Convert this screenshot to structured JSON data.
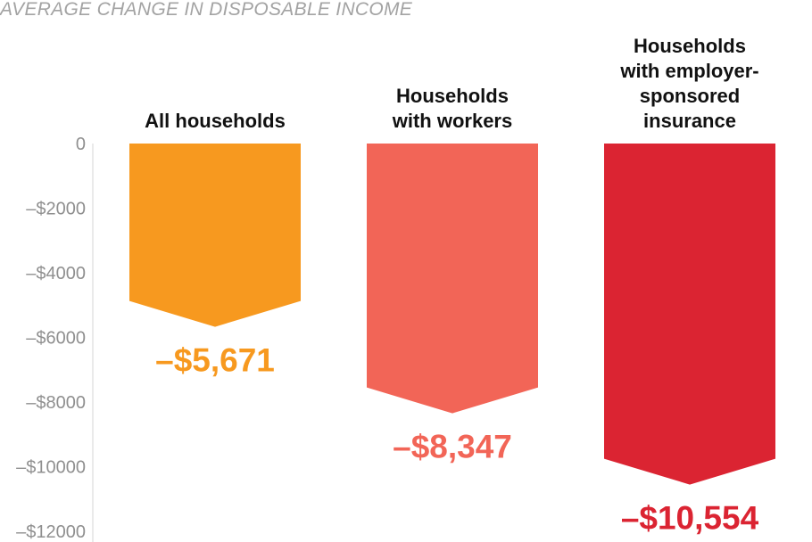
{
  "chart_data": {
    "type": "bar",
    "title": "AVERAGE CHANGE IN DISPOSABLE INCOME",
    "xlabel": "",
    "ylabel": "",
    "ylim": [
      -12000,
      0
    ],
    "yticks": [
      0,
      -2000,
      -4000,
      -6000,
      -8000,
      -10000,
      -12000
    ],
    "ytick_labels": [
      "0",
      "–$2000",
      "–$4000",
      "–$6000",
      "–$8000",
      "–$10000",
      "–$12000"
    ],
    "grid": false,
    "bar_shape": "downward arrow",
    "categories": [
      [
        "All households"
      ],
      [
        "Households",
        "with workers"
      ],
      [
        "Households",
        "with employer-",
        "sponsored",
        "insurance"
      ]
    ],
    "values": [
      -5671,
      -8347,
      -10554
    ],
    "value_labels": [
      "–$5,671",
      "–$8,347",
      "–$10,554"
    ],
    "colors": [
      "#f7991f",
      "#f26557",
      "#db2432"
    ]
  }
}
